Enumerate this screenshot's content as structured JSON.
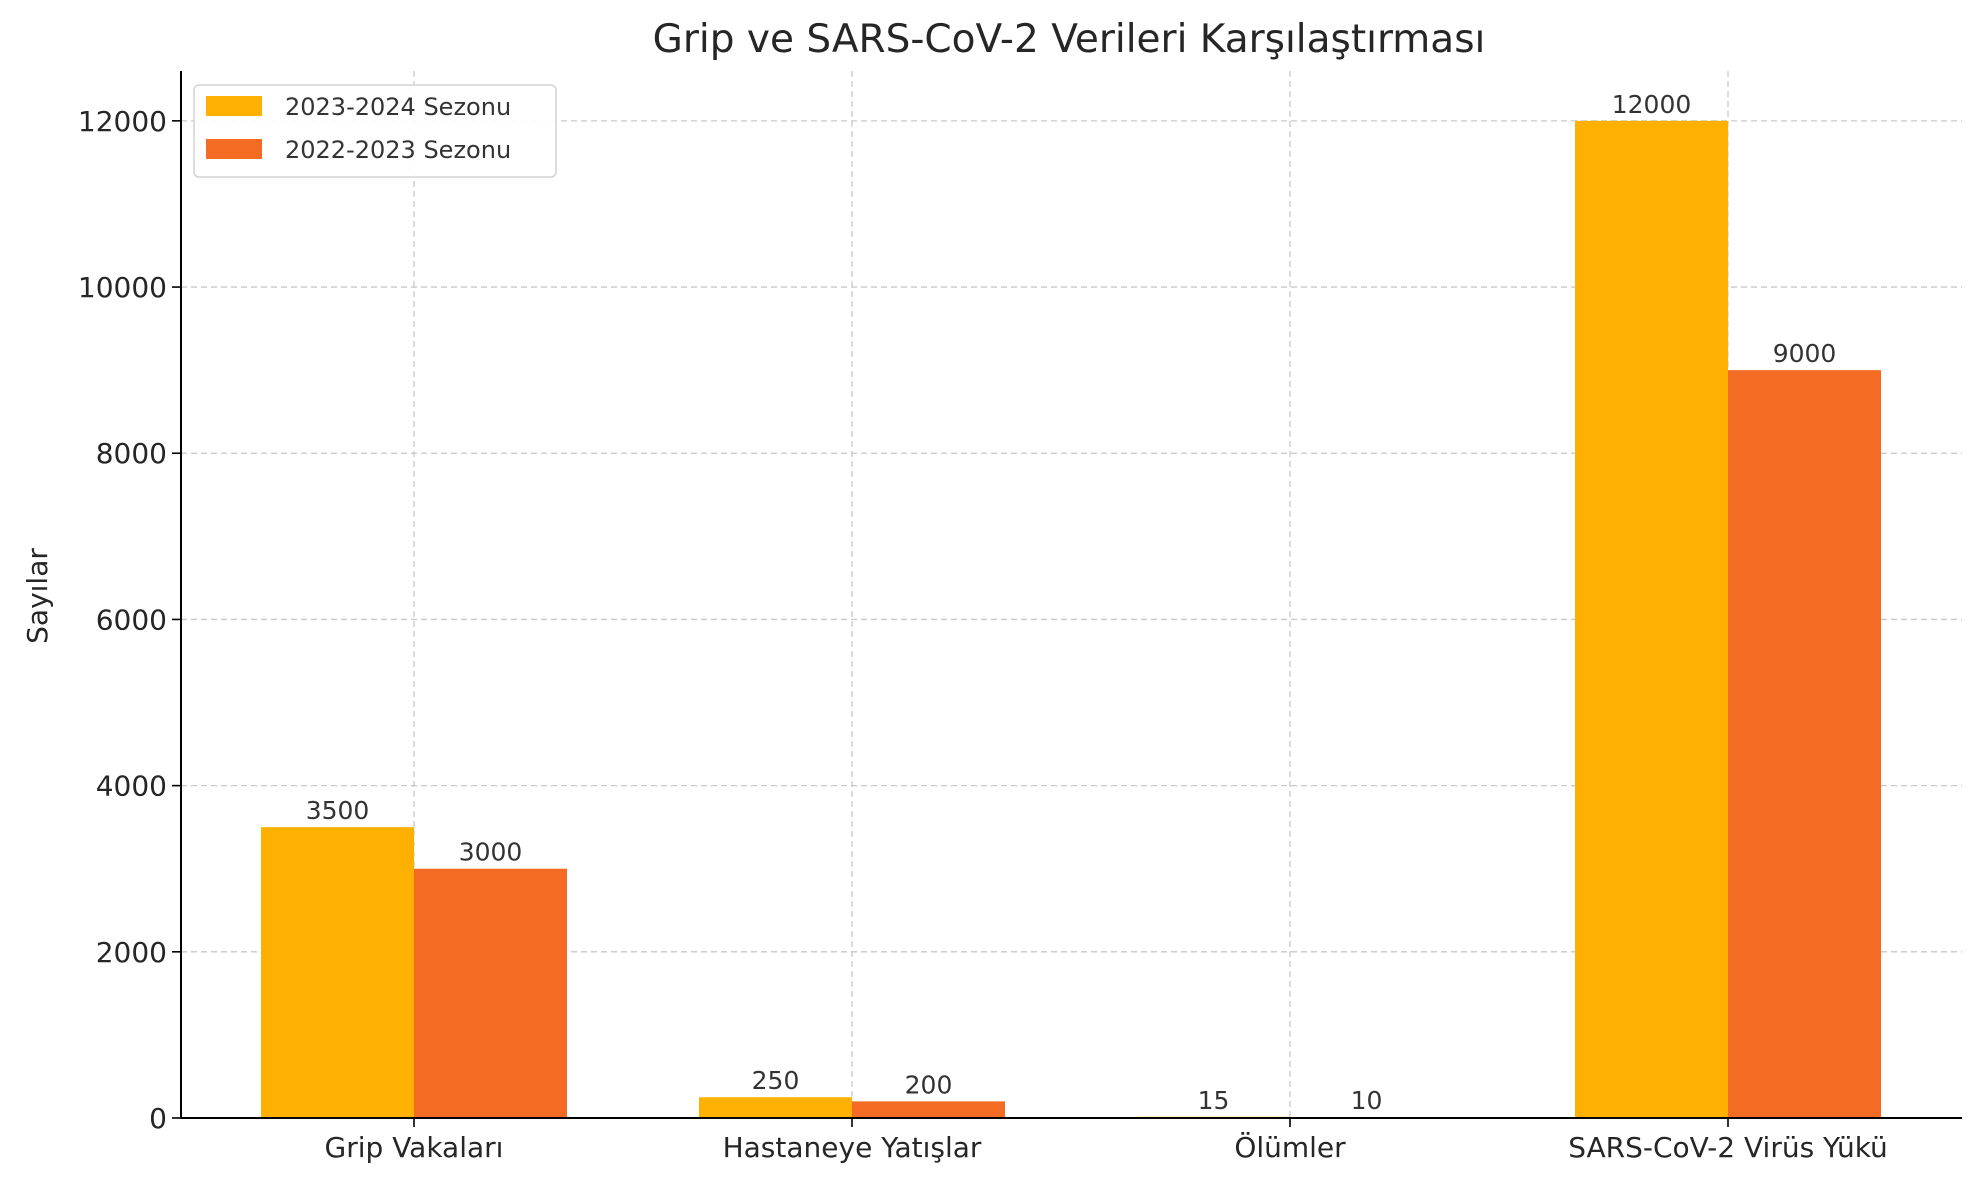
{
  "chart_data": {
    "type": "bar",
    "title": "Grip ve SARS-CoV-2 Verileri Karşılaştırması",
    "xlabel": "",
    "ylabel": "Sayılar",
    "categories": [
      "Grip Vakaları",
      "Hastaneye Yatışlar",
      "Ölümler",
      "SARS-CoV-2 Virüs Yükü"
    ],
    "series": [
      {
        "name": "2023-2024 Sezonu",
        "values": [
          3500,
          250,
          15,
          12000
        ],
        "color": "#FFB000"
      },
      {
        "name": "2022-2023 Sezonu",
        "values": [
          3000,
          200,
          10,
          9000
        ],
        "color": "#F46B23"
      }
    ],
    "ylim": [
      0,
      12600
    ],
    "yticks": [
      0,
      2000,
      4000,
      6000,
      8000,
      10000,
      12000
    ],
    "grid": true,
    "legend_position": "top-left",
    "data_labels": true
  }
}
